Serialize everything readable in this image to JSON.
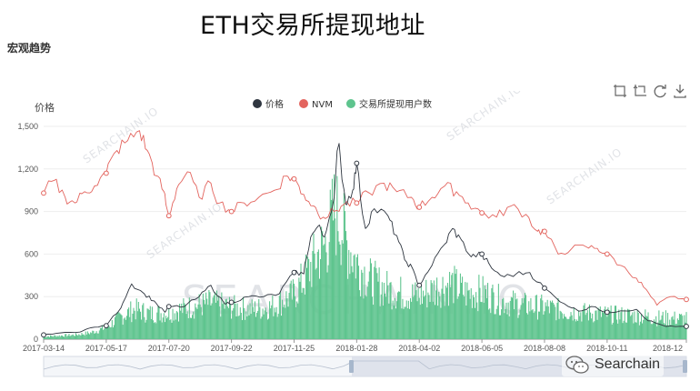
{
  "page": {
    "title": "ETH交易所提现地址",
    "section": "宏观趋势",
    "watermark": "SEARCHAIN.IO",
    "wechat_label": "Searchain"
  },
  "toolbar": {
    "icons": [
      "zoom-select-icon",
      "zoom-reset-icon",
      "restore-icon",
      "save-image-icon"
    ]
  },
  "colors": {
    "price": "#2f3640",
    "nvm": "#e3645e",
    "users": "#5ec48e",
    "axis": "#999999",
    "grid": "#eeeeee",
    "watermark": "#c8ccd4"
  },
  "chart_data": {
    "type": "bar+line",
    "title": "",
    "ylabel": "价格",
    "ylim": [
      0,
      1500
    ],
    "yticks": [
      0,
      300,
      600,
      900,
      1200,
      1500
    ],
    "ytick_labels": [
      "0",
      "300",
      "600",
      "900",
      "1,200",
      "1,500"
    ],
    "xlim": [
      "2017-03-14",
      "2018-12-31"
    ],
    "xtick_labels": [
      "2017-03-14",
      "2017-05-17",
      "2017-07-20",
      "2017-09-22",
      "2017-11-25",
      "2018-01-28",
      "2018-04-02",
      "2018-06-05",
      "2018-08-08",
      "2018-10-11",
      "2018-12"
    ],
    "legend": {
      "position": "top-center",
      "entries": [
        "价格",
        "NVM",
        "交易所提现用户数"
      ]
    },
    "grid": true,
    "series": [
      {
        "name": "价格",
        "kind": "line",
        "points": [
          [
            "2017-03-14",
            30
          ],
          [
            "2017-04-01",
            45
          ],
          [
            "2017-04-20",
            50
          ],
          [
            "2017-05-01",
            80
          ],
          [
            "2017-05-17",
            95
          ],
          [
            "2017-06-01",
            220
          ],
          [
            "2017-06-12",
            390
          ],
          [
            "2017-06-25",
            320
          ],
          [
            "2017-07-05",
            270
          ],
          [
            "2017-07-16",
            190
          ],
          [
            "2017-07-20",
            230
          ],
          [
            "2017-08-05",
            230
          ],
          [
            "2017-08-20",
            300
          ],
          [
            "2017-09-01",
            380
          ],
          [
            "2017-09-15",
            250
          ],
          [
            "2017-09-22",
            260
          ],
          [
            "2017-10-10",
            300
          ],
          [
            "2017-10-25",
            300
          ],
          [
            "2017-11-10",
            320
          ],
          [
            "2017-11-25",
            470
          ],
          [
            "2017-12-05",
            460
          ],
          [
            "2017-12-12",
            720
          ],
          [
            "2017-12-20",
            800
          ],
          [
            "2017-12-26",
            720
          ],
          [
            "2018-01-05",
            1000
          ],
          [
            "2018-01-10",
            1380
          ],
          [
            "2018-01-17",
            950
          ],
          [
            "2018-01-24",
            1050
          ],
          [
            "2018-01-28",
            1240
          ],
          [
            "2018-02-06",
            780
          ],
          [
            "2018-02-15",
            920
          ],
          [
            "2018-03-01",
            870
          ],
          [
            "2018-03-10",
            730
          ],
          [
            "2018-03-18",
            560
          ],
          [
            "2018-03-26",
            500
          ],
          [
            "2018-04-02",
            380
          ],
          [
            "2018-04-15",
            520
          ],
          [
            "2018-04-28",
            670
          ],
          [
            "2018-05-06",
            780
          ],
          [
            "2018-05-15",
            700
          ],
          [
            "2018-05-25",
            580
          ],
          [
            "2018-06-05",
            600
          ],
          [
            "2018-06-15",
            500
          ],
          [
            "2018-06-28",
            440
          ],
          [
            "2018-07-10",
            460
          ],
          [
            "2018-07-24",
            470
          ],
          [
            "2018-08-08",
            360
          ],
          [
            "2018-08-20",
            290
          ],
          [
            "2018-09-05",
            220
          ],
          [
            "2018-09-15",
            200
          ],
          [
            "2018-09-25",
            230
          ],
          [
            "2018-10-11",
            190
          ],
          [
            "2018-10-25",
            200
          ],
          [
            "2018-11-10",
            210
          ],
          [
            "2018-11-20",
            140
          ],
          [
            "2018-12-01",
            110
          ],
          [
            "2018-12-10",
            90
          ],
          [
            "2018-12-31",
            90
          ]
        ]
      },
      {
        "name": "NVM",
        "kind": "line",
        "points": [
          [
            "2017-03-14",
            1030
          ],
          [
            "2017-03-25",
            1120
          ],
          [
            "2017-04-05",
            1000
          ],
          [
            "2017-04-15",
            960
          ],
          [
            "2017-04-25",
            1040
          ],
          [
            "2017-05-05",
            1080
          ],
          [
            "2017-05-17",
            1170
          ],
          [
            "2017-05-28",
            1330
          ],
          [
            "2017-06-08",
            1400
          ],
          [
            "2017-06-20",
            1470
          ],
          [
            "2017-06-28",
            1330
          ],
          [
            "2017-07-08",
            1150
          ],
          [
            "2017-07-15",
            1040
          ],
          [
            "2017-07-20",
            870
          ],
          [
            "2017-07-28",
            1060
          ],
          [
            "2017-08-08",
            1180
          ],
          [
            "2017-08-20",
            1000
          ],
          [
            "2017-09-01",
            1100
          ],
          [
            "2017-09-10",
            960
          ],
          [
            "2017-09-22",
            900
          ],
          [
            "2017-10-05",
            960
          ],
          [
            "2017-10-20",
            1000
          ],
          [
            "2017-11-05",
            1050
          ],
          [
            "2017-11-18",
            1150
          ],
          [
            "2017-11-25",
            1130
          ],
          [
            "2017-12-05",
            1020
          ],
          [
            "2017-12-15",
            940
          ],
          [
            "2017-12-25",
            860
          ],
          [
            "2018-01-05",
            900
          ],
          [
            "2018-01-15",
            950
          ],
          [
            "2018-01-28",
            960
          ],
          [
            "2018-02-10",
            1030
          ],
          [
            "2018-02-25",
            1100
          ],
          [
            "2018-03-10",
            1040
          ],
          [
            "2018-03-25",
            1000
          ],
          [
            "2018-04-02",
            930
          ],
          [
            "2018-04-15",
            1000
          ],
          [
            "2018-04-28",
            1080
          ],
          [
            "2018-05-10",
            1040
          ],
          [
            "2018-05-22",
            960
          ],
          [
            "2018-06-05",
            890
          ],
          [
            "2018-06-20",
            860
          ],
          [
            "2018-07-05",
            940
          ],
          [
            "2018-07-20",
            880
          ],
          [
            "2018-08-01",
            760
          ],
          [
            "2018-08-08",
            760
          ],
          [
            "2018-08-22",
            600
          ],
          [
            "2018-09-05",
            640
          ],
          [
            "2018-09-20",
            650
          ],
          [
            "2018-10-01",
            640
          ],
          [
            "2018-10-11",
            600
          ],
          [
            "2018-10-25",
            520
          ],
          [
            "2018-11-10",
            430
          ],
          [
            "2018-11-20",
            350
          ],
          [
            "2018-12-01",
            240
          ],
          [
            "2018-12-15",
            300
          ],
          [
            "2018-12-31",
            280
          ]
        ]
      },
      {
        "name": "交易所提现用户数",
        "kind": "bar",
        "envelope": [
          [
            "2017-03-14",
            25
          ],
          [
            "2017-04-15",
            40
          ],
          [
            "2017-05-01",
            60
          ],
          [
            "2017-05-17",
            110
          ],
          [
            "2017-06-01",
            210
          ],
          [
            "2017-06-15",
            280
          ],
          [
            "2017-07-01",
            240
          ],
          [
            "2017-07-20",
            250
          ],
          [
            "2017-08-10",
            300
          ],
          [
            "2017-09-01",
            340
          ],
          [
            "2017-09-22",
            300
          ],
          [
            "2017-10-15",
            280
          ],
          [
            "2017-11-01",
            300
          ],
          [
            "2017-11-25",
            420
          ],
          [
            "2017-12-05",
            560
          ],
          [
            "2017-12-12",
            680
          ],
          [
            "2017-12-20",
            800
          ],
          [
            "2017-12-28",
            900
          ],
          [
            "2018-01-05",
            1200
          ],
          [
            "2018-01-10",
            1150
          ],
          [
            "2018-01-18",
            900
          ],
          [
            "2018-01-28",
            720
          ],
          [
            "2018-02-10",
            560
          ],
          [
            "2018-02-25",
            480
          ],
          [
            "2018-03-15",
            430
          ],
          [
            "2018-04-02",
            400
          ],
          [
            "2018-04-20",
            480
          ],
          [
            "2018-05-05",
            520
          ],
          [
            "2018-05-20",
            430
          ],
          [
            "2018-06-05",
            440
          ],
          [
            "2018-06-25",
            360
          ],
          [
            "2018-07-15",
            320
          ],
          [
            "2018-08-08",
            300
          ],
          [
            "2018-09-01",
            260
          ],
          [
            "2018-10-01",
            240
          ],
          [
            "2018-10-11",
            230
          ],
          [
            "2018-11-10",
            220
          ],
          [
            "2018-12-01",
            200
          ],
          [
            "2018-12-31",
            190
          ]
        ]
      }
    ],
    "marked_points": {
      "价格": [
        "2017-03-14",
        "2017-05-17",
        "2017-07-20",
        "2017-09-22",
        "2017-11-25",
        "2018-01-28",
        "2018-04-02",
        "2018-06-05",
        "2018-08-08",
        "2018-10-11",
        "2018-12-31"
      ],
      "NVM": [
        "2017-03-14",
        "2017-05-17",
        "2017-07-20",
        "2017-09-22",
        "2017-11-25",
        "2018-01-28",
        "2018-04-02",
        "2018-06-05",
        "2018-08-08",
        "2018-10-11",
        "2018-12-31"
      ]
    }
  }
}
